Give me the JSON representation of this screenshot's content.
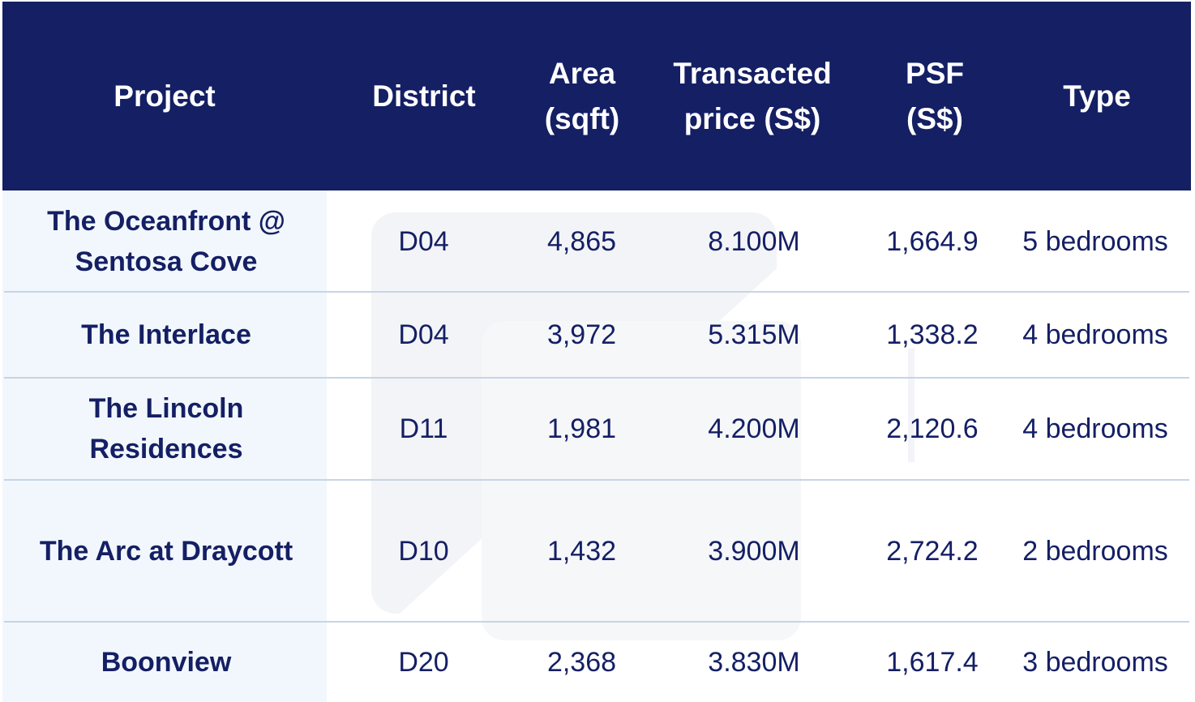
{
  "columns": {
    "project": "Project",
    "district": "District",
    "area": "Area (sqft)",
    "price": "Transacted price (S$)",
    "psf": "PSF (S$)",
    "type": "Type"
  },
  "rows": [
    {
      "project": "The Oceanfront @ Sentosa Cove",
      "district": "D04",
      "area": "4,865",
      "price": "8.100M",
      "psf": "1,664.9",
      "type": "5 bedrooms"
    },
    {
      "project": "The Interlace",
      "district": "D04",
      "area": "3,972",
      "price": "5.315M",
      "psf": "1,338.2",
      "type": "4 bedrooms"
    },
    {
      "project": "The Lincoln Residences",
      "district": "D11",
      "area": "1,981",
      "price": "4.200M",
      "psf": "2,120.6",
      "type": "4 bedrooms"
    },
    {
      "project": "The Arc at Draycott",
      "district": "D10",
      "area": "1,432",
      "price": "3.900M",
      "psf": "2,724.2",
      "type": "2 bedrooms"
    },
    {
      "project": "Boonview",
      "district": "D20",
      "area": "2,368",
      "price": "3.830M",
      "psf": "1,617.4",
      "type": "3 bedrooms"
    }
  ],
  "colors": {
    "header_bg": "#141f64",
    "header_text": "#ffffff",
    "body_text": "#141f64",
    "first_column_bg": "#f2f7fd",
    "divider": "#c6d5e4"
  }
}
